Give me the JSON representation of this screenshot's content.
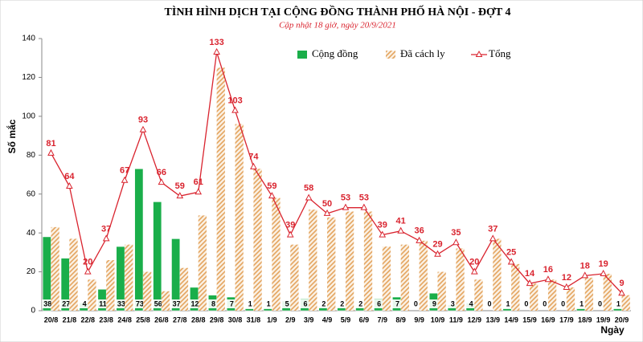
{
  "chart_data": {
    "type": "bar",
    "title": "TÌNH HÌNH DỊCH TẠI CỘNG ĐỒNG THÀNH PHỐ HÀ NỘI - ĐỢT 4",
    "subtitle": "Cập nhật 18 giờ, ngày 20/9/2021",
    "y_label": "Số mắc",
    "x_label": "Ngày",
    "categories": [
      "20/8",
      "21/8",
      "22/8",
      "23/8",
      "24/8",
      "25/8",
      "26/8",
      "27/8",
      "28/8",
      "29/8",
      "30/8",
      "31/8",
      "1/9",
      "2/9",
      "3/9",
      "4/9",
      "5/9",
      "6/9",
      "7/9",
      "8/9",
      "9/9",
      "10/9",
      "11/9",
      "12/9",
      "13/9",
      "14/9",
      "15/9",
      "16/9",
      "17/9",
      "18/9",
      "19/9",
      "20/9"
    ],
    "series": [
      {
        "name": "Cộng đồng",
        "type": "bar",
        "color": "#1aae4a",
        "values": [
          38,
          27,
          4,
          11,
          33,
          73,
          56,
          37,
          12,
          8,
          7,
          1,
          1,
          5,
          6,
          2,
          2,
          2,
          6,
          7,
          0,
          9,
          3,
          4,
          0,
          1,
          0,
          0,
          0,
          1,
          0,
          1
        ]
      },
      {
        "name": "Đã cách ly",
        "type": "bar",
        "hatch": true,
        "color": "#e3a159",
        "values": [
          43,
          37,
          16,
          26,
          34,
          20,
          10,
          22,
          49,
          125,
          96,
          73,
          58,
          34,
          52,
          48,
          51,
          51,
          33,
          34,
          36,
          20,
          32,
          16,
          37,
          24,
          14,
          16,
          12,
          17,
          19,
          8
        ]
      },
      {
        "name": "Tổng",
        "type": "line",
        "color": "#d9232e",
        "values": [
          81,
          64,
          20,
          37,
          67,
          93,
          66,
          59,
          61,
          133,
          103,
          74,
          59,
          39,
          58,
          50,
          53,
          53,
          39,
          41,
          36,
          29,
          35,
          20,
          37,
          25,
          14,
          16,
          12,
          18,
          19,
          9
        ]
      }
    ],
    "ylim": [
      0,
      140
    ],
    "yticks": [
      0,
      20,
      40,
      60,
      80,
      100,
      120,
      140
    ],
    "grid": false,
    "legend": "top"
  }
}
